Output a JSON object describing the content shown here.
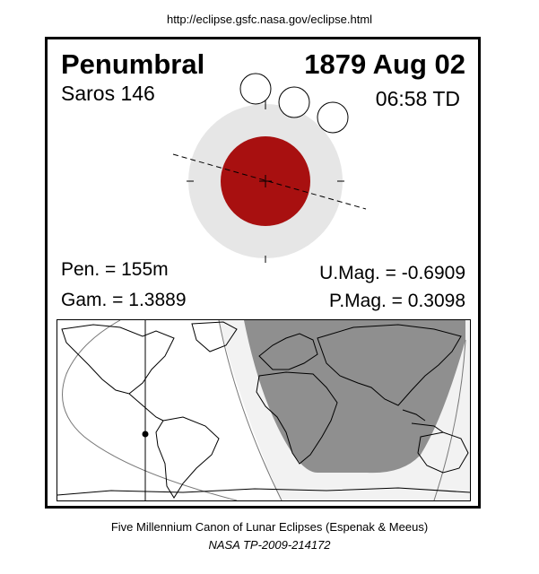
{
  "header": {
    "url": "http://eclipse.gsfc.nasa.gov/eclipse.html"
  },
  "eclipse": {
    "type": "Penumbral",
    "date": "1879 Aug 02",
    "saros": "Saros 146",
    "time": "06:58 TD",
    "pen_duration": "Pen. = 155m",
    "gamma": "Gam. = 1.3889",
    "umbral_magnitude": "U.Mag. = -0.6909",
    "penumbral_magnitude": "P.Mag. = 0.3098"
  },
  "colors": {
    "umbra": "#a81010",
    "penumbra": "#e6e6e6",
    "map_night": "#8f8f8f",
    "map_twilight": "#f2f2f2"
  },
  "footer": {
    "line1": "Five Millennium Canon of Lunar Eclipses (Espenak & Meeus)",
    "line2": "NASA TP-2009-214172"
  }
}
